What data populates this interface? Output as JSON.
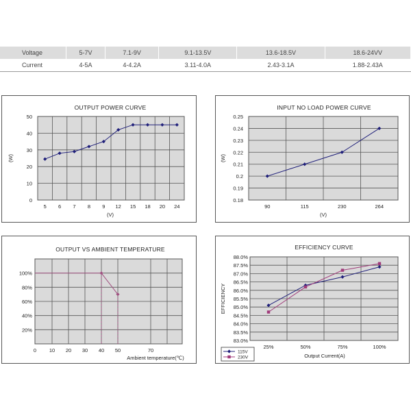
{
  "spec_table": {
    "rows": [
      {
        "label": "Voltage",
        "cells": [
          "5-7V",
          "7.1-9V",
          "9.1-13.5V",
          "13.6-18.5V",
          "18.6-24VV"
        ]
      },
      {
        "label": "Current",
        "cells": [
          "4-5A",
          "4-4.2A",
          "3.11-4.0A",
          "2.43-3.1A",
          "1.88-2.43A"
        ]
      }
    ]
  },
  "colors": {
    "grid_bg": "#dadada",
    "grid_line": "#555555",
    "series1": "#1f1f7a",
    "series2": "#a03a7a",
    "temp_line": "#a05080"
  },
  "chart_data": [
    {
      "type": "line",
      "title": "OUTPUT POWER CURVE",
      "xlabel": "(V)",
      "ylabel": "(W)",
      "categories": [
        "5",
        "6",
        "7",
        "8",
        "9",
        "12",
        "15",
        "18",
        "20",
        "24"
      ],
      "ylim": [
        0,
        50
      ],
      "yticks": [
        "0",
        "10",
        "20",
        "30",
        "40",
        "50"
      ],
      "series": [
        {
          "values": [
            24.5,
            28,
            29,
            32,
            35,
            42,
            45,
            45,
            45,
            45
          ]
        }
      ],
      "grid": true
    },
    {
      "type": "line",
      "title": "INPUT NO LOAD POWER CURVE",
      "xlabel": "(V)",
      "ylabel": "(W)",
      "categories": [
        "90",
        "115",
        "230",
        "264"
      ],
      "ylim": [
        0.18,
        0.25
      ],
      "yticks": [
        "0.18",
        "0.19",
        "0.2",
        "0.21",
        "0.22",
        "0.23",
        "0.24",
        "0.25"
      ],
      "series": [
        {
          "values": [
            0.2,
            0.21,
            0.22,
            0.24
          ]
        }
      ],
      "grid": true
    },
    {
      "type": "line",
      "title": "OUTPUT VS AMBIENT TEMPERATURE",
      "xlabel": "Ambient temperature(℃)",
      "xticks": [
        "0",
        "10",
        "20",
        "30",
        "40",
        "50",
        "70"
      ],
      "yticks": [
        "20%",
        "40%",
        "60%",
        "80%",
        "100%"
      ],
      "x": [
        0,
        40,
        50,
        50
      ],
      "y": [
        100,
        100,
        70,
        45
      ],
      "grid": true
    },
    {
      "type": "line",
      "title": "EFFICIENCY CURVE",
      "xlabel": "Output Current(A)",
      "ylabel": "EFFICIENCY",
      "categories": [
        "25%",
        "50%",
        "75%",
        "100%"
      ],
      "ylim": [
        83.0,
        88.0
      ],
      "yticks": [
        "83.0%",
        "83.5%",
        "84.0%",
        "84.5%",
        "85.0%",
        "85.5%",
        "86.0%",
        "86.5%",
        "87.0%",
        "87.5%",
        "88.0%"
      ],
      "series": [
        {
          "name": "115V",
          "values": [
            85.1,
            86.3,
            86.8,
            87.4
          ]
        },
        {
          "name": "230V",
          "values": [
            84.7,
            86.2,
            87.2,
            87.6
          ]
        }
      ],
      "legend": "bottom-left",
      "grid": true
    }
  ]
}
